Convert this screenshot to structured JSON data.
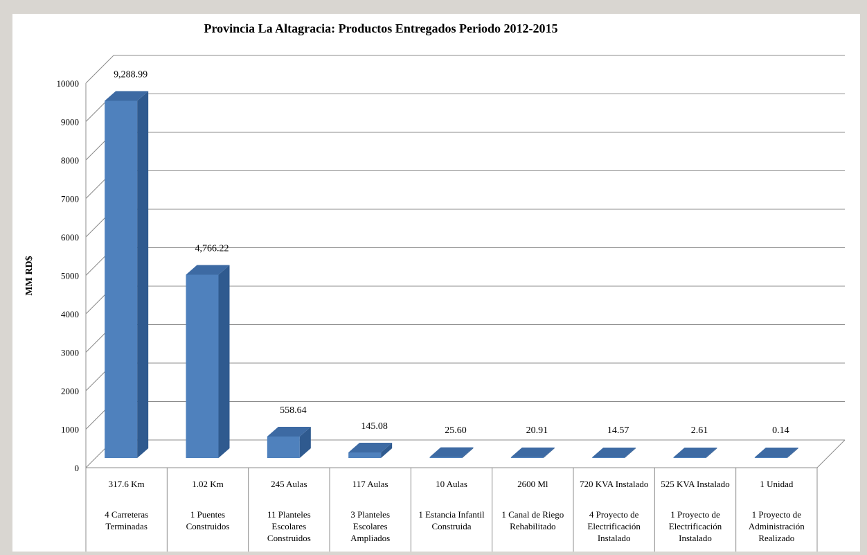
{
  "chart_data": {
    "type": "bar",
    "title": "Provincia La Altagracia: Productos Entregados Periodo 2012-2015",
    "ylabel": "MM RD$",
    "xlabel": "",
    "ylim": [
      0,
      10000
    ],
    "yticks": [
      "0",
      "1000",
      "2000",
      "3000",
      "4000",
      "5000",
      "6000",
      "7000",
      "8000",
      "9000",
      "10000"
    ],
    "grid": true,
    "bar_color": "#4f81bd",
    "categories": [
      {
        "line1": "317.6 Km",
        "line2": [
          "4 Carreteras",
          "Terminadas"
        ]
      },
      {
        "line1": "1.02 Km",
        "line2": [
          "1 Puentes",
          "Construidos"
        ]
      },
      {
        "line1": "245 Aulas",
        "line2": [
          "11 Planteles",
          "Escolares",
          "Construidos"
        ]
      },
      {
        "line1": "117 Aulas",
        "line2": [
          "3 Planteles",
          "Escolares",
          "Ampliados"
        ]
      },
      {
        "line1": "10 Aulas",
        "line2": [
          "1 Estancia Infantil",
          "Construida"
        ]
      },
      {
        "line1": "2600 Ml",
        "line2": [
          "1 Canal de Riego",
          "Rehabilitado"
        ]
      },
      {
        "line1": "720 KVA Instalado",
        "line2": [
          "4 Proyecto de",
          "Electrificación",
          "Instalado"
        ]
      },
      {
        "line1": "525 KVA Instalado",
        "line2": [
          "1 Proyecto de",
          "Electrificación",
          "Instalado"
        ]
      },
      {
        "line1": "1 Unidad",
        "line2": [
          "1 Proyecto de",
          "Administración",
          "Realizado"
        ]
      }
    ],
    "values": [
      9288.99,
      4766.22,
      558.64,
      145.08,
      25.6,
      20.91,
      14.57,
      2.61,
      0.14
    ],
    "data_labels": [
      "9,288.99",
      "4,766.22",
      "558.64",
      "145.08",
      "25.60",
      "20.91",
      "14.57",
      "2.61",
      "0.14"
    ]
  }
}
